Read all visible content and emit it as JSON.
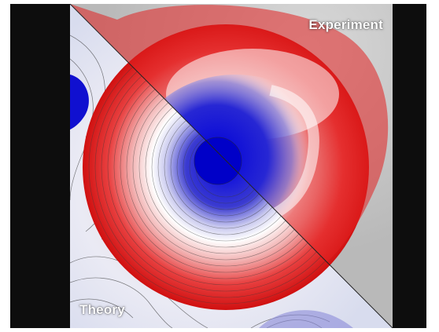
{
  "labels": {
    "experiment": "Experiment",
    "theory": "Theory"
  },
  "colors": {
    "background": "#0d0d0d",
    "positive": "#e21b1b",
    "neutral": "#ffffff",
    "negative": "#1515d6"
  }
}
